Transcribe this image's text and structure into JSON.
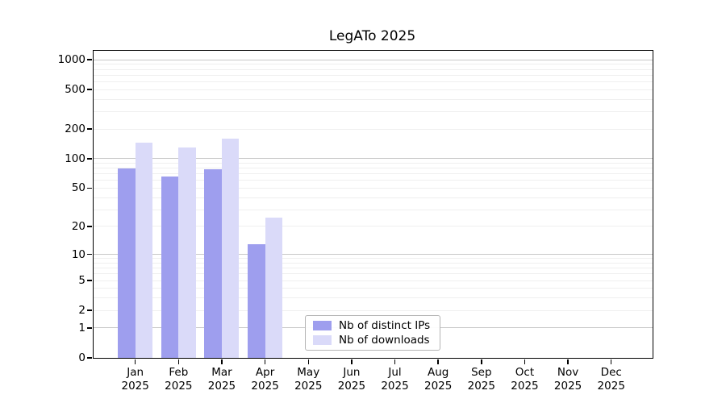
{
  "title": "LegATo 2025",
  "chart_data": {
    "type": "bar",
    "title": "LegATo 2025",
    "categories": [
      "Jan",
      "Feb",
      "Mar",
      "Apr",
      "May",
      "Jun",
      "Jul",
      "Aug",
      "Sep",
      "Oct",
      "Nov",
      "Dec"
    ],
    "year_label": "2025",
    "series": [
      {
        "name": "Nb of distinct IPs",
        "color": "#9e9eee",
        "values": [
          80,
          66,
          78,
          13,
          null,
          null,
          null,
          null,
          null,
          null,
          null,
          null
        ]
      },
      {
        "name": "Nb of downloads",
        "color": "#dadaf9",
        "values": [
          146,
          129,
          160,
          25,
          null,
          null,
          null,
          null,
          null,
          null,
          null,
          null
        ]
      }
    ],
    "xlabel": "",
    "ylabel": "",
    "yscale": "log10(value+1)",
    "ylim": [
      0,
      1230
    ],
    "yticks": [
      0,
      1,
      2,
      5,
      10,
      20,
      50,
      100,
      200,
      500,
      1000
    ],
    "grid": {
      "enabled": true,
      "major_lines_at": [
        1,
        10,
        100,
        1000
      ],
      "minor_lines_at": [
        2,
        3,
        4,
        5,
        6,
        7,
        8,
        9,
        20,
        30,
        40,
        50,
        60,
        70,
        80,
        90,
        200,
        300,
        400,
        500,
        600,
        700,
        800,
        900
      ]
    },
    "legend_position": "inside lower-center",
    "colors": {
      "major_grid": "#c8c8c8",
      "minor_grid": "#efefef",
      "spine": "#000000"
    }
  }
}
